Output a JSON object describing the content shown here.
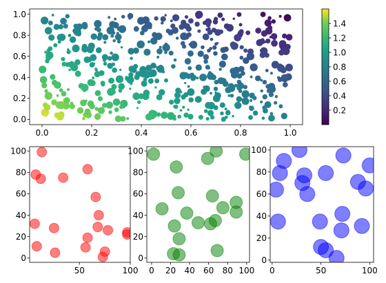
{
  "chart_data": [
    {
      "type": "scatter",
      "title": "",
      "xlabel": "",
      "ylabel": "",
      "xlim": [
        -0.05,
        1.05
      ],
      "ylim": [
        -0.05,
        1.05
      ],
      "xticks": [
        0.0,
        0.2,
        0.4,
        0.6,
        0.8,
        1.0
      ],
      "yticks": [
        0.0,
        0.2,
        0.4,
        0.6,
        0.8,
        1.0
      ],
      "x_tick_labels": [
        "0.0",
        "0.2",
        "0.4",
        "0.6",
        "0.8",
        "1.0"
      ],
      "y_tick_labels": [
        "0.0",
        "0.2",
        "0.4",
        "0.6",
        "0.8",
        "1.0"
      ],
      "point_count_estimate": 500,
      "color_encodes": "x + y",
      "colormap": "viridis",
      "grid": false,
      "sample_points": [
        {
          "x": 0.01,
          "y": 0.94
        },
        {
          "x": 0.03,
          "y": 0.61
        },
        {
          "x": 0.05,
          "y": 0.35
        },
        {
          "x": 0.08,
          "y": 0.78
        },
        {
          "x": 0.1,
          "y": 0.18
        },
        {
          "x": 0.12,
          "y": 0.52
        },
        {
          "x": 0.15,
          "y": 0.88
        },
        {
          "x": 0.17,
          "y": 0.27
        },
        {
          "x": 0.2,
          "y": 0.68
        },
        {
          "x": 0.22,
          "y": 0.1
        },
        {
          "x": 0.24,
          "y": 0.44
        },
        {
          "x": 0.27,
          "y": 0.97
        },
        {
          "x": 0.29,
          "y": 0.31
        },
        {
          "x": 0.31,
          "y": 0.74
        },
        {
          "x": 0.33,
          "y": 0.15
        },
        {
          "x": 0.36,
          "y": 0.58
        },
        {
          "x": 0.38,
          "y": 0.86
        },
        {
          "x": 0.4,
          "y": 0.22
        },
        {
          "x": 0.43,
          "y": 0.49
        },
        {
          "x": 0.45,
          "y": 0.05
        },
        {
          "x": 0.47,
          "y": 0.79
        },
        {
          "x": 0.5,
          "y": 0.37
        },
        {
          "x": 0.52,
          "y": 0.63
        },
        {
          "x": 0.54,
          "y": 0.12
        },
        {
          "x": 0.57,
          "y": 0.92
        },
        {
          "x": 0.59,
          "y": 0.41
        },
        {
          "x": 0.61,
          "y": 0.71
        },
        {
          "x": 0.63,
          "y": 0.19
        },
        {
          "x": 0.66,
          "y": 0.55
        },
        {
          "x": 0.68,
          "y": 0.83
        },
        {
          "x": 0.7,
          "y": 0.29
        },
        {
          "x": 0.73,
          "y": 0.66
        },
        {
          "x": 0.75,
          "y": 0.08
        },
        {
          "x": 0.77,
          "y": 0.46
        },
        {
          "x": 0.8,
          "y": 0.9
        },
        {
          "x": 0.82,
          "y": 0.24
        },
        {
          "x": 0.84,
          "y": 0.6
        },
        {
          "x": 0.87,
          "y": 0.39
        },
        {
          "x": 0.89,
          "y": 0.76
        },
        {
          "x": 0.91,
          "y": 0.14
        },
        {
          "x": 0.94,
          "y": 0.52
        },
        {
          "x": 0.96,
          "y": 0.98
        },
        {
          "x": 0.98,
          "y": 0.33
        },
        {
          "x": 0.99,
          "y": 0.69
        },
        {
          "x": 0.06,
          "y": 0.04
        },
        {
          "x": 0.46,
          "y": 0.96
        },
        {
          "x": 0.64,
          "y": 0.02
        },
        {
          "x": 0.86,
          "y": 0.06
        },
        {
          "x": 0.34,
          "y": 0.4
        },
        {
          "x": 0.56,
          "y": 0.26
        }
      ],
      "colorbar": {
        "range": [
          0.0,
          1.6
        ],
        "ticks": [
          0.2,
          0.4,
          0.6,
          0.8,
          1.0,
          1.2,
          1.4
        ],
        "tick_labels": [
          "0.2",
          "0.4",
          "0.6",
          "0.8",
          "1.0",
          "1.2",
          "1.4"
        ]
      }
    },
    {
      "type": "scatter",
      "title": "",
      "xlabel": "",
      "ylabel": "",
      "color": "#ff0000",
      "alpha": 0.5,
      "xlim": [
        1,
        100
      ],
      "ylim": [
        -4,
        104
      ],
      "xticks": [
        50,
        100
      ],
      "yticks": [
        0,
        20,
        40,
        60,
        80,
        100
      ],
      "x_tick_labels": [
        "50",
        "100"
      ],
      "y_tick_labels": [
        "0",
        "20",
        "40",
        "60",
        "80",
        "100"
      ],
      "points": [
        {
          "x": 13,
          "y": 99
        },
        {
          "x": 7,
          "y": 78
        },
        {
          "x": 12,
          "y": 74
        },
        {
          "x": 34,
          "y": 75
        },
        {
          "x": 58,
          "y": 83
        },
        {
          "x": 66,
          "y": 57
        },
        {
          "x": 69,
          "y": 40
        },
        {
          "x": 6,
          "y": 32
        },
        {
          "x": 25,
          "y": 28
        },
        {
          "x": 68,
          "y": 29
        },
        {
          "x": 78,
          "y": 26
        },
        {
          "x": 97,
          "y": 24
        },
        {
          "x": 97,
          "y": 22
        },
        {
          "x": 58,
          "y": 19
        },
        {
          "x": 8,
          "y": 11
        },
        {
          "x": 56,
          "y": 10
        },
        {
          "x": 26,
          "y": 5
        },
        {
          "x": 75,
          "y": 6
        },
        {
          "x": 73,
          "y": 1
        }
      ]
    },
    {
      "type": "scatter",
      "title": "",
      "xlabel": "",
      "ylabel": "",
      "color": "#008000",
      "alpha": 0.5,
      "xlim": [
        -5,
        103
      ],
      "ylim": [
        -4,
        104
      ],
      "xticks": [
        0,
        20,
        40,
        60,
        80,
        100
      ],
      "yticks": [
        0,
        20,
        40,
        60,
        80,
        100
      ],
      "x_tick_labels": [
        "0",
        "20",
        "40",
        "60",
        "80",
        "100"
      ],
      "y_tick_labels": [
        "0",
        "20",
        "40",
        "60",
        "80",
        "100"
      ],
      "points": [
        {
          "x": 2,
          "y": 97
        },
        {
          "x": 26,
          "y": 85
        },
        {
          "x": 59,
          "y": 93
        },
        {
          "x": 68,
          "y": 100
        },
        {
          "x": 99,
          "y": 97
        },
        {
          "x": 64,
          "y": 58
        },
        {
          "x": 28,
          "y": 61
        },
        {
          "x": 11,
          "y": 46
        },
        {
          "x": 37,
          "y": 42
        },
        {
          "x": 75,
          "y": 47
        },
        {
          "x": 89,
          "y": 52
        },
        {
          "x": 89,
          "y": 43
        },
        {
          "x": 67,
          "y": 35
        },
        {
          "x": 49,
          "y": 33
        },
        {
          "x": 62,
          "y": 32
        },
        {
          "x": 24,
          "y": 30
        },
        {
          "x": 29,
          "y": 18
        },
        {
          "x": 23,
          "y": 4
        },
        {
          "x": 69,
          "y": 7
        },
        {
          "x": 29,
          "y": 3
        }
      ]
    },
    {
      "type": "scatter",
      "title": "",
      "xlabel": "",
      "ylabel": "",
      "color": "#0000ff",
      "alpha": 0.5,
      "xlim": [
        -2,
        104
      ],
      "ylim": [
        -2,
        103
      ],
      "xticks": [
        0,
        50,
        100
      ],
      "yticks": [
        0,
        20,
        40,
        60,
        80,
        100
      ],
      "x_tick_labels": [
        "0",
        "50",
        "100"
      ],
      "y_tick_labels": [
        "0",
        "20",
        "40",
        "60",
        "80",
        "100"
      ],
      "points": [
        {
          "x": 28,
          "y": 100
        },
        {
          "x": 73,
          "y": 95
        },
        {
          "x": 12,
          "y": 90
        },
        {
          "x": 100,
          "y": 86
        },
        {
          "x": 8,
          "y": 79
        },
        {
          "x": 33,
          "y": 77
        },
        {
          "x": 55,
          "y": 79
        },
        {
          "x": 31,
          "y": 70
        },
        {
          "x": 88,
          "y": 71
        },
        {
          "x": 96,
          "y": 65
        },
        {
          "x": 4,
          "y": 64
        },
        {
          "x": 36,
          "y": 60
        },
        {
          "x": 72,
          "y": 42
        },
        {
          "x": 6,
          "y": 35
        },
        {
          "x": 49,
          "y": 35
        },
        {
          "x": 71,
          "y": 27
        },
        {
          "x": 92,
          "y": 31
        },
        {
          "x": 50,
          "y": 12
        },
        {
          "x": 55,
          "y": 9
        },
        {
          "x": 66,
          "y": 2
        }
      ]
    }
  ]
}
